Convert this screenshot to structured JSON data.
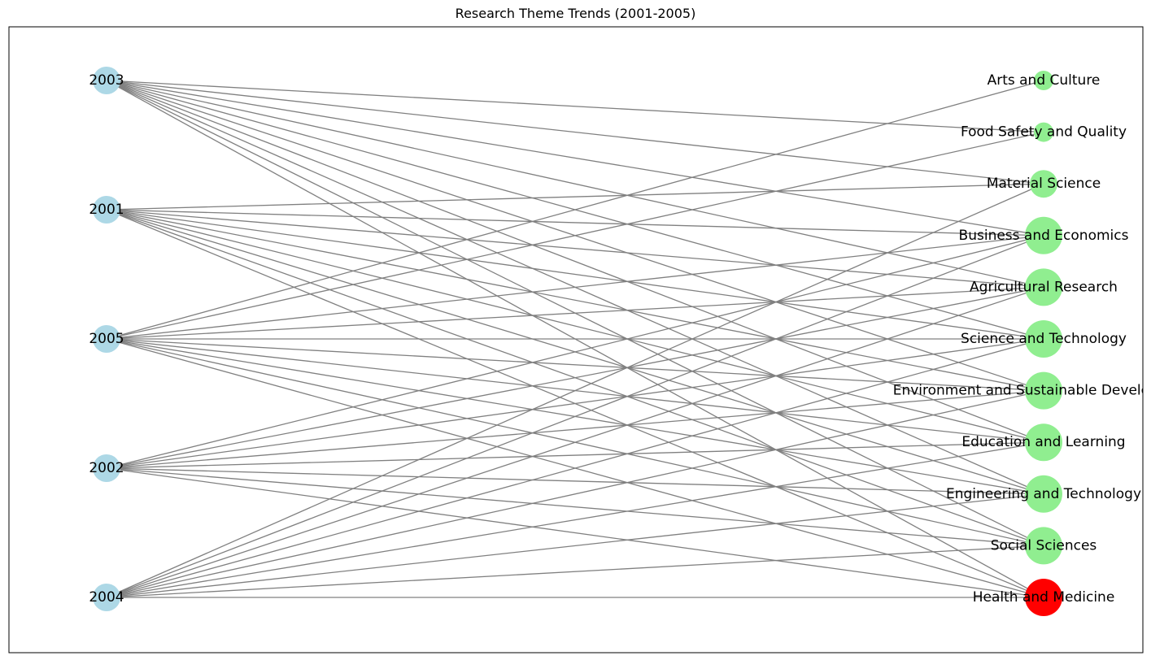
{
  "title": "Research Theme Trends (2001-2005)",
  "colors": {
    "year_node": "#add8e6",
    "theme_node": "#90ee90",
    "highlight_node": "#ff0000",
    "edge": "#808080"
  },
  "years": [
    "2003",
    "2001",
    "2005",
    "2002",
    "2004"
  ],
  "themes": [
    {
      "label": "Arts and Culture",
      "size": "small",
      "highlight": false
    },
    {
      "label": "Food Safety and Quality",
      "size": "small",
      "highlight": false
    },
    {
      "label": "Material Science",
      "size": "medium",
      "highlight": false
    },
    {
      "label": "Business and Economics",
      "size": "large",
      "highlight": false
    },
    {
      "label": "Agricultural Research",
      "size": "large",
      "highlight": false
    },
    {
      "label": "Science and Technology",
      "size": "large",
      "highlight": false
    },
    {
      "label": "Environment and Sustainable Development",
      "size": "large",
      "highlight": false
    },
    {
      "label": "Education and Learning",
      "size": "large",
      "highlight": false
    },
    {
      "label": "Engineering and Technology",
      "size": "large",
      "highlight": false
    },
    {
      "label": "Social Sciences",
      "size": "large",
      "highlight": false
    },
    {
      "label": "Health and Medicine",
      "size": "large",
      "highlight": true
    }
  ],
  "edges": [
    [
      "2003",
      "Food Safety and Quality"
    ],
    [
      "2003",
      "Material Science"
    ],
    [
      "2003",
      "Business and Economics"
    ],
    [
      "2003",
      "Agricultural Research"
    ],
    [
      "2003",
      "Science and Technology"
    ],
    [
      "2003",
      "Environment and Sustainable Development"
    ],
    [
      "2003",
      "Education and Learning"
    ],
    [
      "2003",
      "Engineering and Technology"
    ],
    [
      "2003",
      "Social Sciences"
    ],
    [
      "2003",
      "Health and Medicine"
    ],
    [
      "2001",
      "Material Science"
    ],
    [
      "2001",
      "Business and Economics"
    ],
    [
      "2001",
      "Agricultural Research"
    ],
    [
      "2001",
      "Science and Technology"
    ],
    [
      "2001",
      "Environment and Sustainable Development"
    ],
    [
      "2001",
      "Education and Learning"
    ],
    [
      "2001",
      "Engineering and Technology"
    ],
    [
      "2001",
      "Social Sciences"
    ],
    [
      "2001",
      "Health and Medicine"
    ],
    [
      "2005",
      "Arts and Culture"
    ],
    [
      "2005",
      "Food Safety and Quality"
    ],
    [
      "2005",
      "Business and Economics"
    ],
    [
      "2005",
      "Agricultural Research"
    ],
    [
      "2005",
      "Science and Technology"
    ],
    [
      "2005",
      "Environment and Sustainable Development"
    ],
    [
      "2005",
      "Education and Learning"
    ],
    [
      "2005",
      "Engineering and Technology"
    ],
    [
      "2005",
      "Social Sciences"
    ],
    [
      "2005",
      "Health and Medicine"
    ],
    [
      "2002",
      "Business and Economics"
    ],
    [
      "2002",
      "Agricultural Research"
    ],
    [
      "2002",
      "Science and Technology"
    ],
    [
      "2002",
      "Environment and Sustainable Development"
    ],
    [
      "2002",
      "Education and Learning"
    ],
    [
      "2002",
      "Engineering and Technology"
    ],
    [
      "2002",
      "Social Sciences"
    ],
    [
      "2002",
      "Health and Medicine"
    ],
    [
      "2004",
      "Material Science"
    ],
    [
      "2004",
      "Business and Economics"
    ],
    [
      "2004",
      "Agricultural Research"
    ],
    [
      "2004",
      "Science and Technology"
    ],
    [
      "2004",
      "Environment and Sustainable Development"
    ],
    [
      "2004",
      "Education and Learning"
    ],
    [
      "2004",
      "Engineering and Technology"
    ],
    [
      "2004",
      "Social Sciences"
    ],
    [
      "2004",
      "Health and Medicine"
    ]
  ]
}
